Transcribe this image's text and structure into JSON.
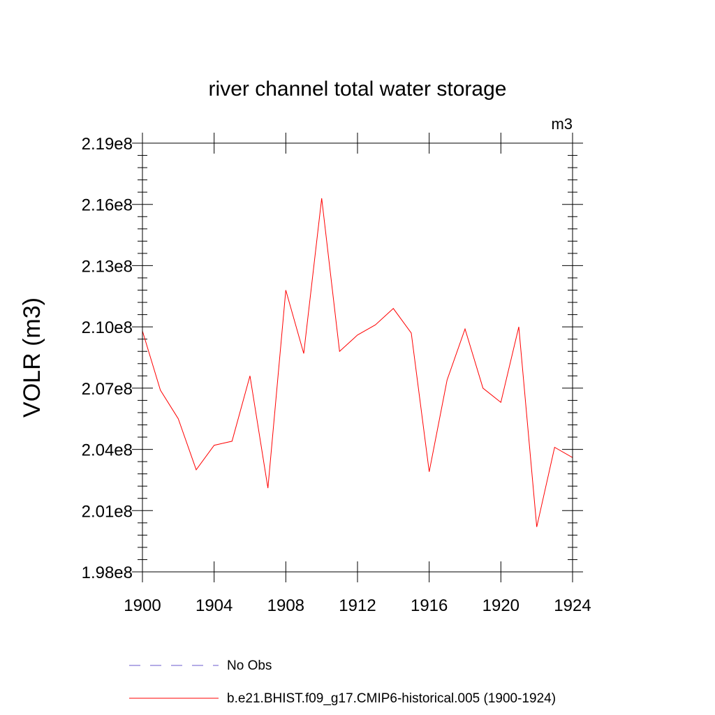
{
  "chart_data": {
    "type": "line",
    "title": "river channel total water storage",
    "units_label": "m3",
    "ylabel": "VOLR  (m3)",
    "xlabel": "",
    "xlim": [
      1900,
      1924
    ],
    "ylim": [
      198000000.0,
      219000000.0
    ],
    "x_ticks": [
      1900,
      1904,
      1908,
      1912,
      1916,
      1920,
      1924
    ],
    "x_tick_labels": [
      "1900",
      "1904",
      "1908",
      "1912",
      "1916",
      "1920",
      "1924"
    ],
    "y_ticks": [
      198000000.0,
      201000000.0,
      204000000.0,
      207000000.0,
      210000000.0,
      213000000.0,
      216000000.0,
      219000000.0
    ],
    "y_tick_labels": [
      "1.98e8",
      "2.01e8",
      "2.04e8",
      "2.07e8",
      "2.10e8",
      "2.13e8",
      "2.16e8",
      "2.19e8"
    ],
    "grid": false,
    "legend_position": "bottom",
    "series": [
      {
        "name": "b.e21.BHIST.f09_g17.CMIP6-historical.005 (1900-1924)",
        "color": "#ff0000",
        "style": "solid",
        "x": [
          1900,
          1901,
          1902,
          1903,
          1904,
          1905,
          1906,
          1907,
          1908,
          1909,
          1910,
          1911,
          1912,
          1913,
          1914,
          1915,
          1916,
          1917,
          1918,
          1919,
          1920,
          1921,
          1922,
          1923,
          1924
        ],
        "y": [
          209800000.0,
          206900000.0,
          205500000.0,
          203000000.0,
          204200000.0,
          204400000.0,
          207600000.0,
          202100000.0,
          211800000.0,
          208700000.0,
          216300000.0,
          208800000.0,
          209600000.0,
          210100000.0,
          210900000.0,
          209700000.0,
          202900000.0,
          207400000.0,
          209900000.0,
          207000000.0,
          206300000.0,
          210000000.0,
          200200000.0,
          204100000.0,
          203600000.0
        ]
      },
      {
        "name": "No Obs",
        "color": "#6a5acd",
        "style": "dashed",
        "x": [],
        "y": []
      }
    ]
  }
}
